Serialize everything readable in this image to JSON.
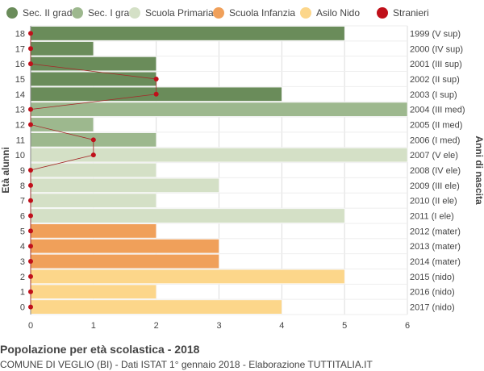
{
  "legend": [
    {
      "label": "Sec. II grado",
      "color": "#6a8c5a"
    },
    {
      "label": "Sec. I grado",
      "color": "#9db88e"
    },
    {
      "label": "Scuola Primaria",
      "color": "#d4e0c6"
    },
    {
      "label": "Scuola Infanzia",
      "color": "#f0a05a"
    },
    {
      "label": "Asilo Nido",
      "color": "#fcd68a"
    },
    {
      "label": "Stranieri",
      "color": "#c0101a"
    }
  ],
  "footer": {
    "title": "Popolazione per età scolastica - 2018",
    "subtitle": "COMUNE DI VEGLIO (BI) - Dati ISTAT 1° gennaio 2018 - Elaborazione TUTTITALIA.IT"
  },
  "chart_data": {
    "type": "bar",
    "orientation": "horizontal",
    "ylabel": "Età alunni",
    "ylabel_right": "Anni di nascita",
    "xlim": [
      0,
      6
    ],
    "x_ticks": [
      0,
      1,
      2,
      3,
      4,
      5,
      6
    ],
    "grid": true,
    "legend_position": "top",
    "rows": [
      {
        "age": 18,
        "year_label": "1999 (V sup)",
        "value": 5,
        "stranieri": 0,
        "category": "Sec. II grado"
      },
      {
        "age": 17,
        "year_label": "2000 (IV sup)",
        "value": 1,
        "stranieri": 0,
        "category": "Sec. II grado"
      },
      {
        "age": 16,
        "year_label": "2001 (III sup)",
        "value": 2,
        "stranieri": 0,
        "category": "Sec. II grado"
      },
      {
        "age": 15,
        "year_label": "2002 (II sup)",
        "value": 2,
        "stranieri": 2,
        "category": "Sec. II grado"
      },
      {
        "age": 14,
        "year_label": "2003 (I sup)",
        "value": 4,
        "stranieri": 2,
        "category": "Sec. II grado"
      },
      {
        "age": 13,
        "year_label": "2004 (III med)",
        "value": 6,
        "stranieri": 0,
        "category": "Sec. I grado"
      },
      {
        "age": 12,
        "year_label": "2005 (II med)",
        "value": 1,
        "stranieri": 0,
        "category": "Sec. I grado"
      },
      {
        "age": 11,
        "year_label": "2006 (I med)",
        "value": 2,
        "stranieri": 1,
        "category": "Sec. I grado"
      },
      {
        "age": 10,
        "year_label": "2007 (V ele)",
        "value": 6,
        "stranieri": 1,
        "category": "Scuola Primaria"
      },
      {
        "age": 9,
        "year_label": "2008 (IV ele)",
        "value": 2,
        "stranieri": 0,
        "category": "Scuola Primaria"
      },
      {
        "age": 8,
        "year_label": "2009 (III ele)",
        "value": 3,
        "stranieri": 0,
        "category": "Scuola Primaria"
      },
      {
        "age": 7,
        "year_label": "2010 (II ele)",
        "value": 2,
        "stranieri": 0,
        "category": "Scuola Primaria"
      },
      {
        "age": 6,
        "year_label": "2011 (I ele)",
        "value": 5,
        "stranieri": 0,
        "category": "Scuola Primaria"
      },
      {
        "age": 5,
        "year_label": "2012 (mater)",
        "value": 2,
        "stranieri": 0,
        "category": "Scuola Infanzia"
      },
      {
        "age": 4,
        "year_label": "2013 (mater)",
        "value": 3,
        "stranieri": 0,
        "category": "Scuola Infanzia"
      },
      {
        "age": 3,
        "year_label": "2014 (mater)",
        "value": 3,
        "stranieri": 0,
        "category": "Scuola Infanzia"
      },
      {
        "age": 2,
        "year_label": "2015 (nido)",
        "value": 5,
        "stranieri": 0,
        "category": "Asilo Nido"
      },
      {
        "age": 1,
        "year_label": "2016 (nido)",
        "value": 2,
        "stranieri": 0,
        "category": "Asilo Nido"
      },
      {
        "age": 0,
        "year_label": "2017 (nido)",
        "value": 4,
        "stranieri": 0,
        "category": "Asilo Nido"
      }
    ]
  }
}
